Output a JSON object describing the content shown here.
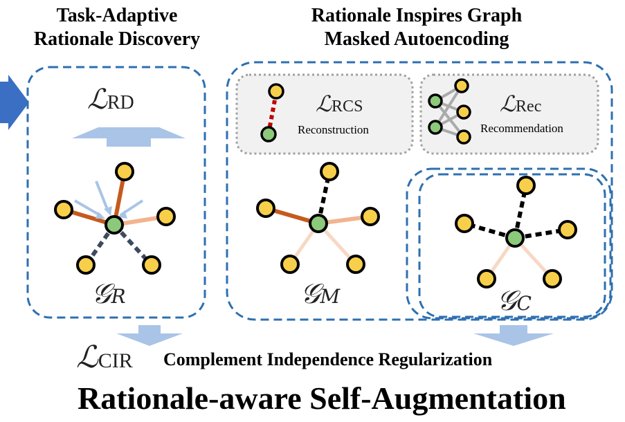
{
  "titles": {
    "rd_line1": "Task-Adaptive",
    "rd_line2": "Rationale Discovery",
    "mask_line1": "Rationale Inspires Graph",
    "mask_line2": "Masked Autoencoding"
  },
  "losses": {
    "rd": {
      "symbol": "ℒ",
      "sub": "RD"
    },
    "rcs": {
      "symbol": "ℒ",
      "sub": "RCS",
      "caption": "Reconstruction"
    },
    "rec": {
      "symbol": "ℒ",
      "sub": "Rec",
      "caption": "Recommendation"
    },
    "cir": {
      "symbol": "ℒ",
      "sub": "CIR",
      "caption": "Complement Independence Regularization"
    }
  },
  "graphs": {
    "r": {
      "symbol": "𝒢",
      "sub": "R"
    },
    "m": {
      "symbol": "𝒢",
      "sub": "M"
    },
    "c": {
      "symbol": "𝒢",
      "sub": "C"
    }
  },
  "main_title": "Rationale-aware Self-Augmentation",
  "colors": {
    "dash_blue": "#2e6fb0",
    "node_yellow": "#f7cf4a",
    "node_green": "#8cc97a",
    "strong_edge": "#c55a1e",
    "light_edge": "#f2b48f",
    "faint_edge": "#f8d8c4",
    "arrow_light": "#a9c4e6",
    "arrow_solid": "#3a6fc4",
    "gray_box": "#f1f1f1",
    "red_edge": "#c00000"
  }
}
